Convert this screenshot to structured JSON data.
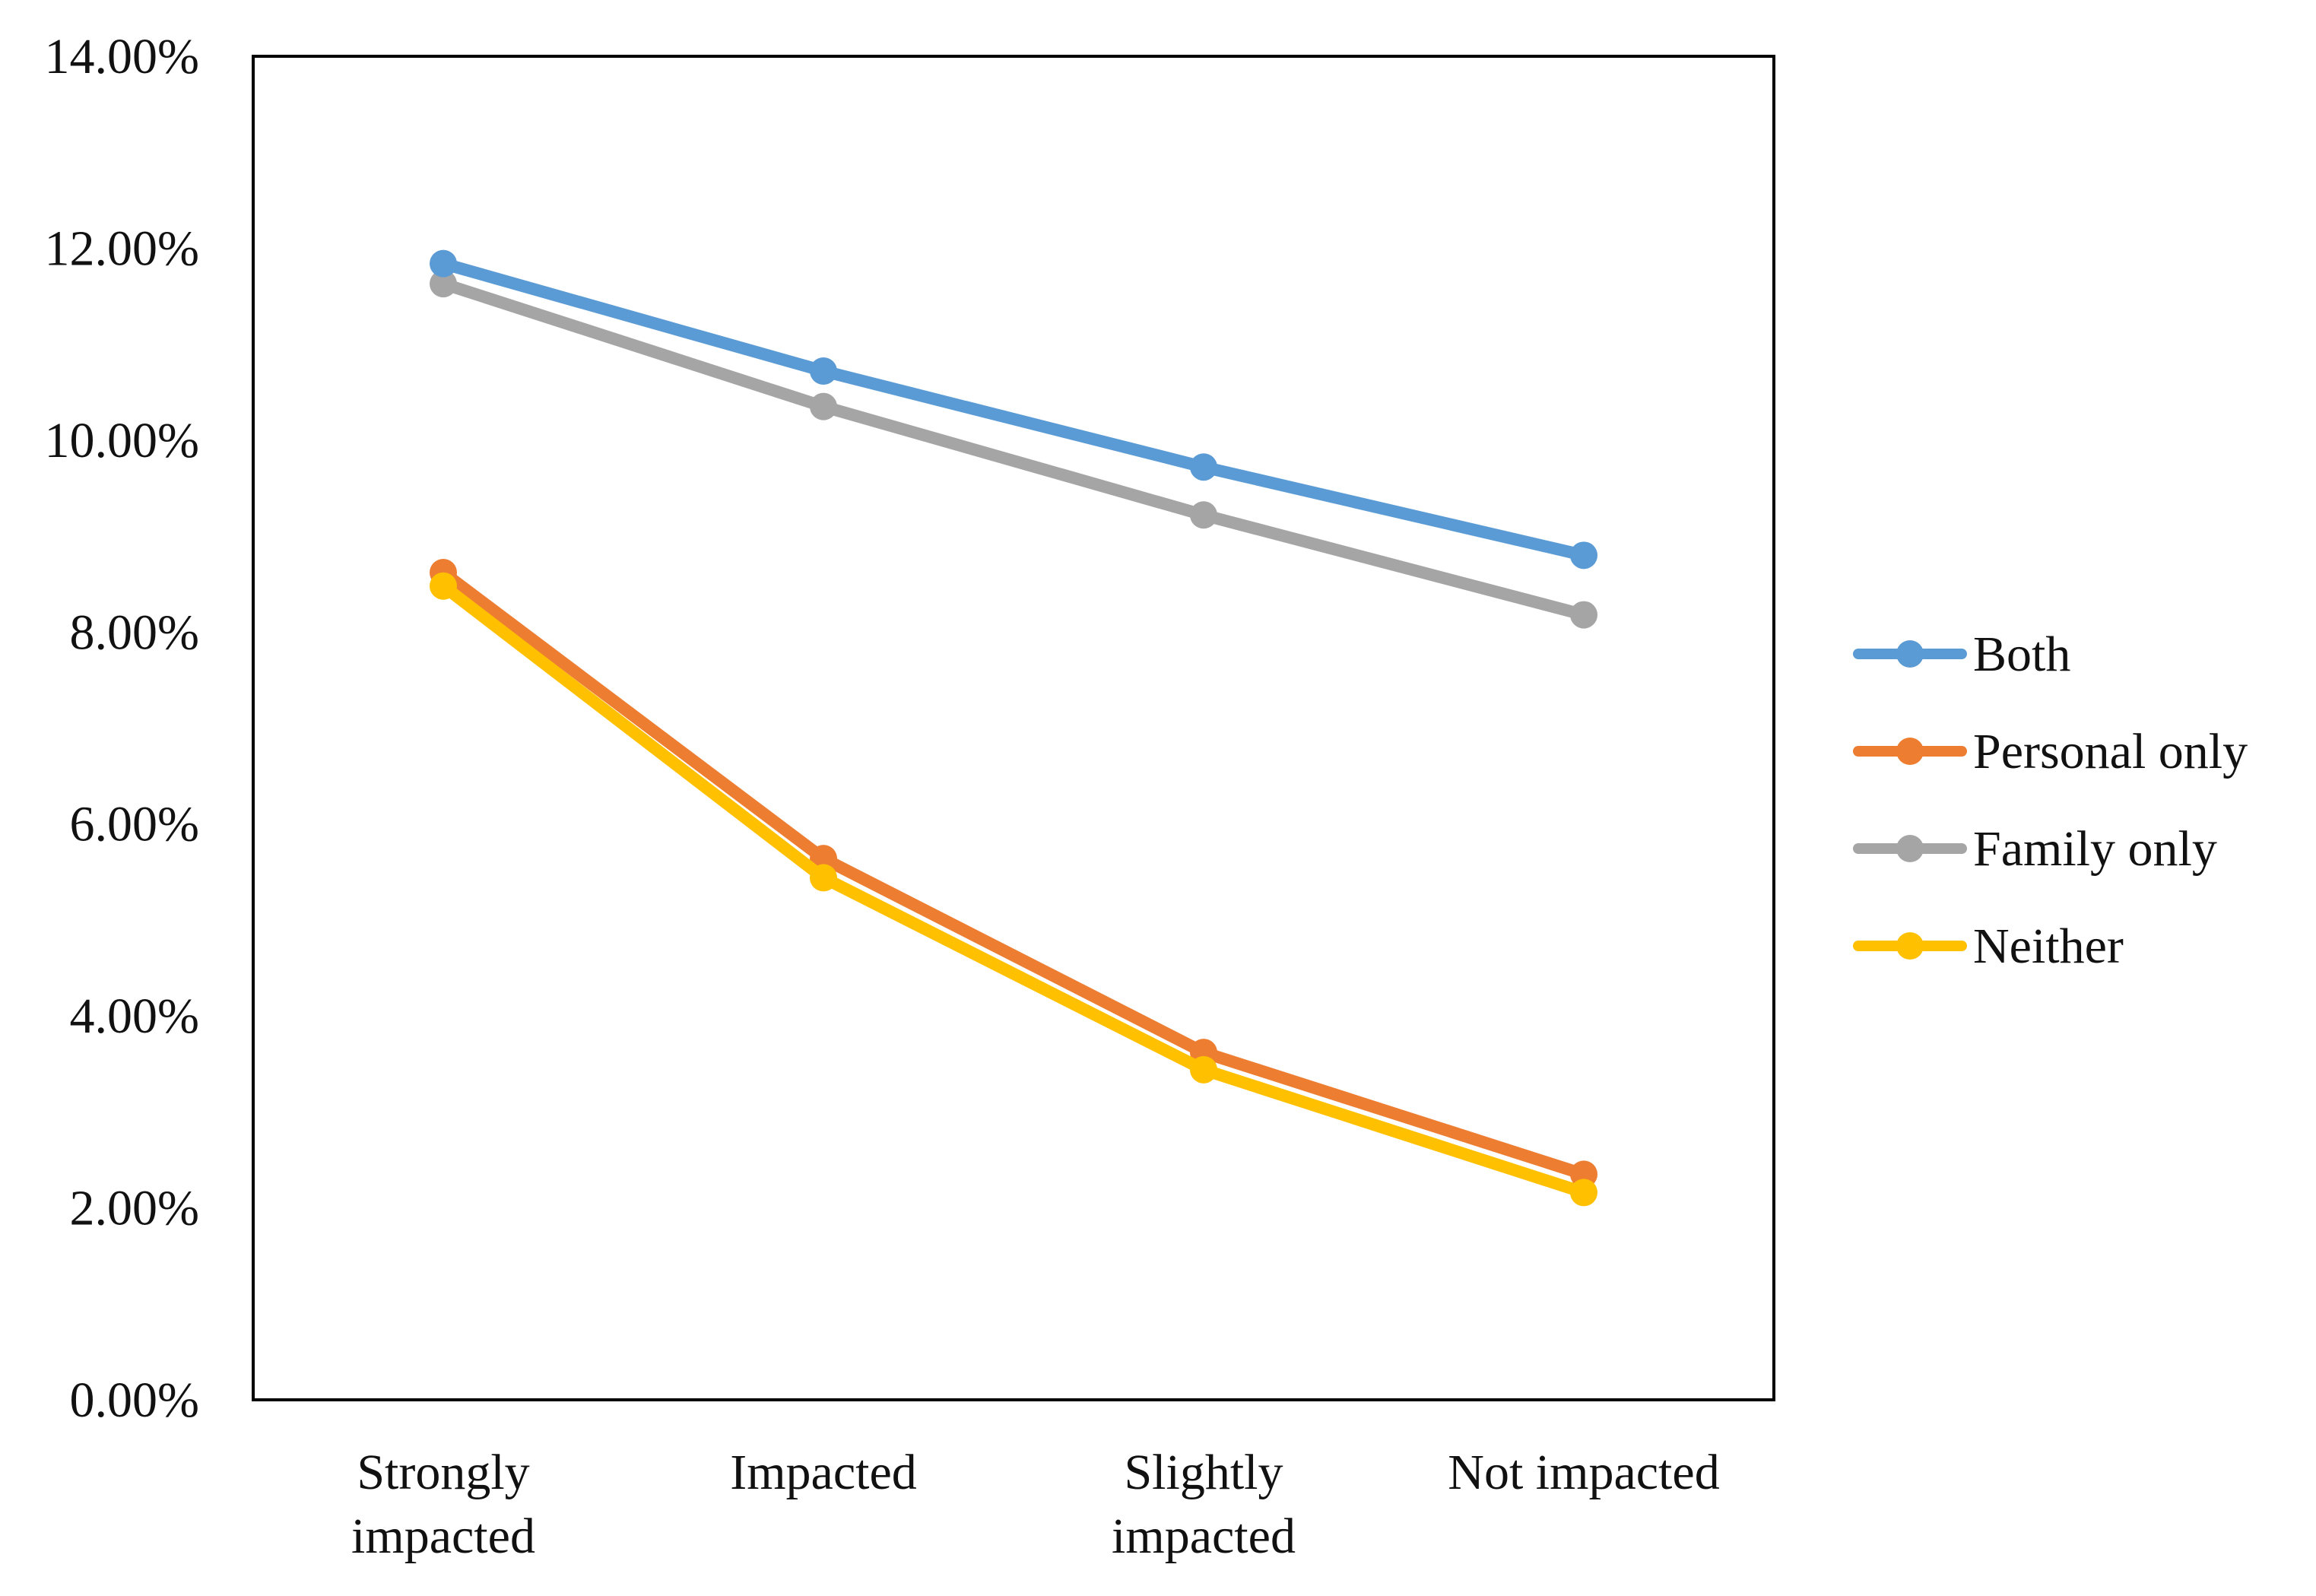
{
  "chart_data": {
    "type": "line",
    "title": "",
    "xlabel": "",
    "ylabel": "",
    "categories": [
      [
        "Strongly",
        "impacted"
      ],
      [
        "Impacted"
      ],
      [
        "Slightly",
        "impacted"
      ],
      [
        "Not impacted"
      ]
    ],
    "ylim": [
      0,
      14
    ],
    "yticks": [
      0,
      2,
      4,
      6,
      8,
      10,
      12,
      14
    ],
    "ytick_labels": [
      "0.00%",
      "2.00%",
      "4.00%",
      "6.00%",
      "8.00%",
      "10.00%",
      "12.00%",
      "14.00%"
    ],
    "grid": false,
    "legend_position": "right",
    "series": [
      {
        "name": "Both",
        "color": "#5B9BD5",
        "values": [
          11.84,
          10.72,
          9.72,
          8.8
        ]
      },
      {
        "name": "Personal only",
        "color": "#ED7D31",
        "values": [
          8.62,
          5.64,
          3.62,
          2.35
        ]
      },
      {
        "name": "Family only",
        "color": "#A5A5A5",
        "values": [
          11.63,
          10.35,
          9.22,
          8.18
        ]
      },
      {
        "name": "Neither",
        "color": "#FFC000",
        "values": [
          8.48,
          5.44,
          3.44,
          2.16
        ]
      }
    ]
  }
}
